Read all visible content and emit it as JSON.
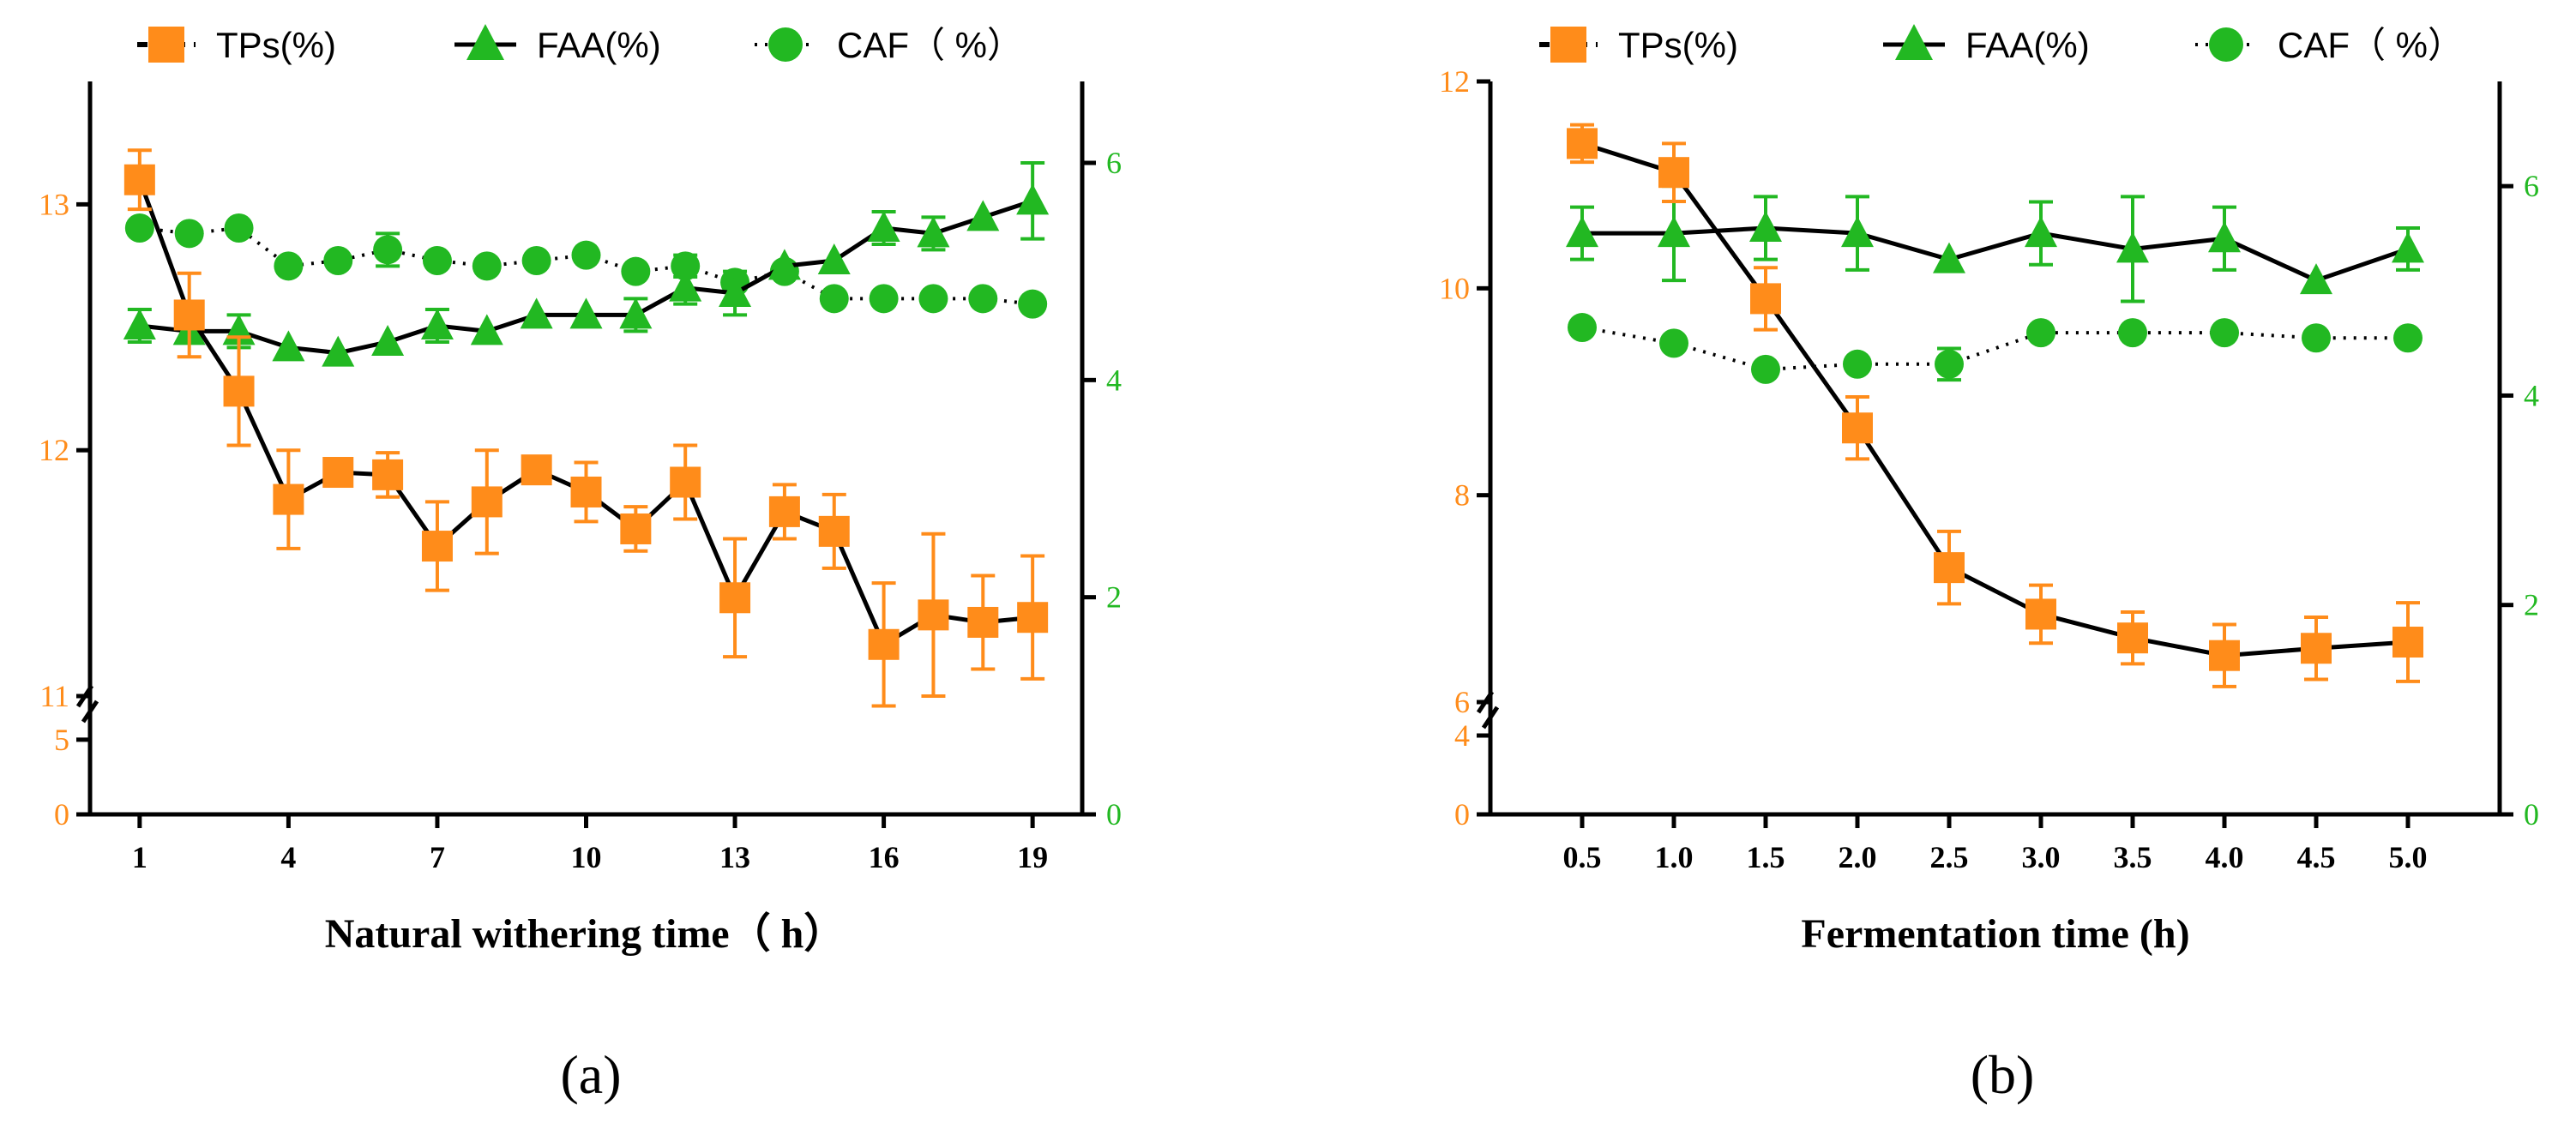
{
  "colors": {
    "tps": "#FF8C1A",
    "faa": "#22B822",
    "caf": "#22B822",
    "line": "#000000",
    "axis": "#000000"
  },
  "chart_data": [
    {
      "type": "line",
      "panel_label": "(a)",
      "xlabel": "Natural withering time（ h）",
      "x": [
        1,
        2,
        3,
        4,
        5,
        6,
        7,
        8,
        9,
        10,
        11,
        12,
        13,
        14,
        15,
        16,
        17,
        18,
        19
      ],
      "x_ticks": [
        1,
        4,
        7,
        10,
        13,
        16,
        19
      ],
      "x_tick_labels": [
        "1",
        "4",
        "7",
        "10",
        "13",
        "16",
        "19"
      ],
      "xlim": [
        0,
        20
      ],
      "y_left": {
        "lower_segment": {
          "range": [
            0,
            7
          ],
          "ticks": [
            0,
            5
          ],
          "tick_labels": [
            "0",
            "5"
          ]
        },
        "upper_segment": {
          "range": [
            11,
            13.5
          ],
          "ticks": [
            11,
            12,
            13
          ],
          "tick_labels": [
            "11",
            "12",
            "13"
          ]
        }
      },
      "y_right": {
        "range": [
          0,
          6.75
        ],
        "ticks": [
          0,
          2,
          4,
          6
        ],
        "tick_labels": [
          "0",
          "2",
          "4",
          "6"
        ]
      },
      "legend": [
        "TPs(%)",
        "FAA(%)",
        "CAF（ %）"
      ],
      "series": [
        {
          "name": "TPs(%)",
          "axis": "left",
          "marker": "square",
          "line": "solid",
          "values": [
            13.1,
            12.55,
            12.24,
            11.8,
            11.91,
            11.9,
            11.61,
            11.79,
            11.92,
            11.83,
            11.68,
            11.87,
            11.4,
            11.75,
            11.67,
            11.21,
            11.33,
            11.3,
            11.32
          ],
          "errors": [
            0.12,
            0.17,
            0.22,
            0.2,
            0.02,
            0.09,
            0.18,
            0.21,
            0.02,
            0.12,
            0.09,
            0.15,
            0.24,
            0.11,
            0.15,
            0.25,
            0.33,
            0.19,
            0.25
          ]
        },
        {
          "name": "FAA(%)",
          "axis": "right",
          "marker": "triangle",
          "line": "solid",
          "values": [
            4.5,
            4.45,
            4.45,
            4.3,
            4.25,
            4.35,
            4.5,
            4.45,
            4.6,
            4.6,
            4.6,
            4.85,
            4.8,
            5.05,
            5.1,
            5.4,
            5.35,
            5.5,
            5.65
          ],
          "errors": [
            0.15,
            0.0,
            0.15,
            0.0,
            0.0,
            0.0,
            0.15,
            0.0,
            0.0,
            0.0,
            0.15,
            0.15,
            0.2,
            0.0,
            0.0,
            0.15,
            0.15,
            0.0,
            0.35
          ]
        },
        {
          "name": "CAF（ %）",
          "axis": "right",
          "marker": "circle",
          "line": "dotted",
          "values": [
            5.4,
            5.35,
            5.4,
            5.05,
            5.1,
            5.2,
            5.1,
            5.05,
            5.1,
            5.15,
            5.0,
            5.05,
            4.9,
            5.0,
            4.75,
            4.75,
            4.75,
            4.75,
            4.7
          ],
          "errors": [
            0.0,
            0.0,
            0.0,
            0.0,
            0.0,
            0.15,
            0.0,
            0.0,
            0.0,
            0.0,
            0.0,
            0.1,
            0.0,
            0.0,
            0.0,
            0.0,
            0.0,
            0.0,
            0.0
          ]
        }
      ]
    },
    {
      "type": "line",
      "panel_label": "(b)",
      "xlabel": "Fermentation time (h)",
      "x": [
        0.5,
        1.0,
        1.5,
        2.0,
        2.5,
        3.0,
        3.5,
        4.0,
        4.5,
        5.0
      ],
      "x_ticks": [
        0.5,
        1.0,
        1.5,
        2.0,
        2.5,
        3.0,
        3.5,
        4.0,
        4.5,
        5.0
      ],
      "x_tick_labels": [
        "0.5",
        "1.0",
        "1.5",
        "2.0",
        "2.5",
        "3.0",
        "3.5",
        "4.0",
        "4.5",
        "5.0"
      ],
      "xlim": [
        0,
        5.5
      ],
      "y_left": {
        "lower_segment": {
          "range": [
            0,
            5
          ],
          "ticks": [
            0,
            4
          ],
          "tick_labels": [
            "0",
            "4"
          ]
        },
        "upper_segment": {
          "range": [
            6,
            12
          ],
          "ticks": [
            6,
            8,
            10,
            12
          ],
          "tick_labels": [
            "6",
            "8",
            "10",
            "12"
          ]
        }
      },
      "y_right": {
        "range": [
          0,
          7
        ],
        "ticks": [
          0,
          2,
          4,
          6
        ],
        "tick_labels": [
          "0",
          "2",
          "4",
          "6"
        ]
      },
      "legend": [
        "TPs(%)",
        "FAA(%)",
        "CAF（ %）"
      ],
      "series": [
        {
          "name": "TPs(%)",
          "axis": "left",
          "marker": "square",
          "line": "solid",
          "values": [
            11.4,
            11.12,
            9.9,
            8.65,
            7.3,
            6.85,
            6.62,
            6.45,
            6.52,
            6.58
          ],
          "errors": [
            0.18,
            0.28,
            0.3,
            0.3,
            0.35,
            0.28,
            0.25,
            0.3,
            0.3,
            0.38
          ]
        },
        {
          "name": "FAA(%)",
          "axis": "right",
          "marker": "triangle",
          "line": "solid",
          "values": [
            5.55,
            5.55,
            5.6,
            5.55,
            5.3,
            5.55,
            5.4,
            5.5,
            5.1,
            5.4
          ],
          "errors": [
            0.25,
            0.45,
            0.3,
            0.35,
            0.0,
            0.3,
            0.5,
            0.3,
            0.0,
            0.2
          ]
        },
        {
          "name": "CAF（ %）",
          "axis": "right",
          "marker": "circle",
          "line": "dotted",
          "values": [
            4.65,
            4.5,
            4.25,
            4.3,
            4.3,
            4.6,
            4.6,
            4.6,
            4.55,
            4.55
          ],
          "errors": [
            0.0,
            0.0,
            0.0,
            0.0,
            0.15,
            0.0,
            0.0,
            0.0,
            0.0,
            0.0
          ]
        }
      ]
    }
  ]
}
